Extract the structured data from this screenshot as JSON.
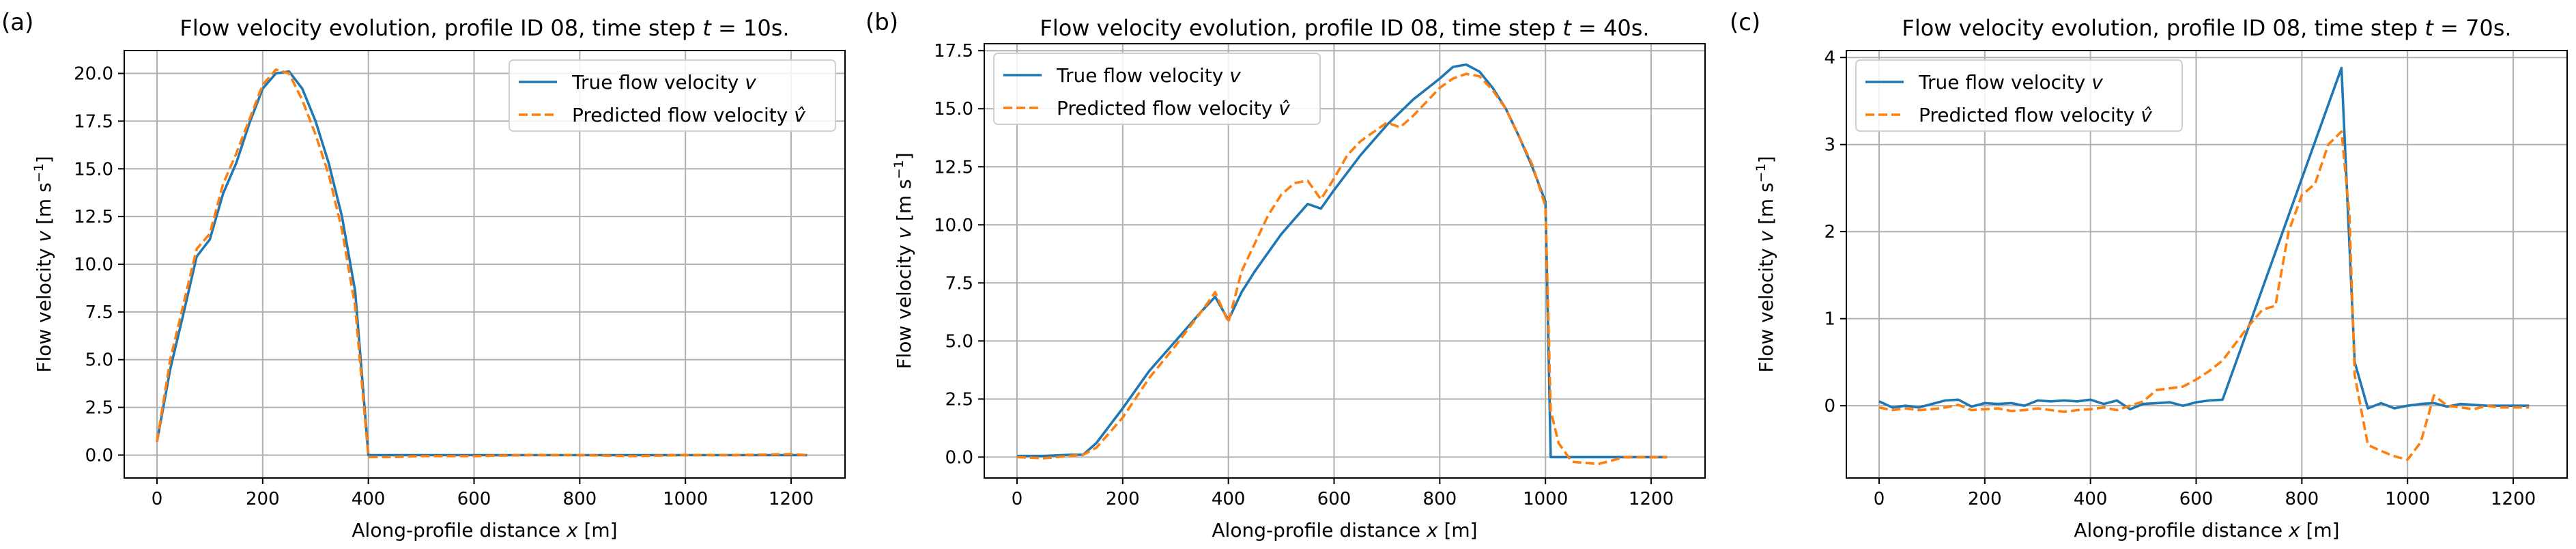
{
  "figure": {
    "colors": {
      "true_series": "#1f77b4",
      "pred_series": "#ff7f0e",
      "grid": "#b0b0b0",
      "axes": "#000000"
    }
  },
  "chart_data": [
    {
      "type": "line",
      "panel_label": "(a)",
      "title_prefix": "Flow velocity evolution, profile ID 08, time step ",
      "title_var": "t",
      "title_suffix": " = 10s.",
      "xlabel_prefix": "Along-profile distance ",
      "xlabel_var": "x",
      "xlabel_suffix": " [m]",
      "ylabel_prefix": "Flow velocity ",
      "ylabel_var": "v",
      "ylabel_suffix": " [m s",
      "ylabel_exp": "−1",
      "ylabel_close": "]",
      "legend_position": "top-right",
      "grid": true,
      "xlim": [
        -62,
        1302
      ],
      "ylim": [
        -1.2,
        21.2
      ],
      "xticks": [
        0,
        200,
        400,
        600,
        800,
        1000,
        1200
      ],
      "xtick_labels": [
        "0",
        "200",
        "400",
        "600",
        "800",
        "1000",
        "1200"
      ],
      "yticks": [
        0.0,
        2.5,
        5.0,
        7.5,
        10.0,
        12.5,
        15.0,
        17.5,
        20.0
      ],
      "ytick_labels": [
        "0.0",
        "2.5",
        "5.0",
        "7.5",
        "10.0",
        "12.5",
        "15.0",
        "17.5",
        "20.0"
      ],
      "series": [
        {
          "name": "True flow velocity",
          "symbol": "v",
          "style": "solid",
          "x": [
            0,
            25,
            50,
            75,
            100,
            125,
            150,
            175,
            200,
            225,
            250,
            275,
            300,
            325,
            350,
            375,
            400,
            500,
            600,
            700,
            800,
            900,
            1000,
            1100,
            1200,
            1230
          ],
          "y": [
            0.7,
            4.5,
            7.4,
            10.4,
            11.3,
            13.7,
            15.3,
            17.4,
            19.2,
            20.0,
            20.1,
            19.2,
            17.5,
            15.3,
            12.5,
            8.6,
            0.0,
            0.0,
            0.0,
            0.0,
            0.0,
            0.0,
            0.0,
            0.0,
            0.0,
            0.0
          ]
        },
        {
          "name": "Predicted flow velocity",
          "symbol": "v̂",
          "style": "dashed",
          "x": [
            0,
            25,
            50,
            75,
            100,
            125,
            150,
            175,
            200,
            225,
            250,
            275,
            300,
            325,
            350,
            375,
            400,
            450,
            500,
            600,
            700,
            800,
            900,
            1000,
            1100,
            1200,
            1230
          ],
          "y": [
            0.7,
            5.0,
            7.9,
            10.8,
            11.6,
            14.2,
            15.8,
            17.6,
            19.4,
            20.2,
            20.0,
            18.6,
            16.8,
            14.7,
            11.8,
            7.8,
            -0.1,
            -0.1,
            -0.05,
            -0.05,
            0.0,
            0.0,
            -0.05,
            0.0,
            0.0,
            0.05,
            0.0
          ]
        }
      ]
    },
    {
      "type": "line",
      "panel_label": "(b)",
      "title_prefix": "Flow velocity evolution, profile ID 08, time step ",
      "title_var": "t",
      "title_suffix": " = 40s.",
      "xlabel_prefix": "Along-profile distance ",
      "xlabel_var": "x",
      "xlabel_suffix": " [m]",
      "ylabel_prefix": "Flow velocity ",
      "ylabel_var": "v",
      "ylabel_suffix": " [m s",
      "ylabel_exp": "−1",
      "ylabel_close": "]",
      "legend_position": "top-left",
      "grid": true,
      "xlim": [
        -62,
        1302
      ],
      "ylim": [
        -0.9,
        17.8
      ],
      "xticks": [
        0,
        200,
        400,
        600,
        800,
        1000,
        1200
      ],
      "xtick_labels": [
        "0",
        "200",
        "400",
        "600",
        "800",
        "1000",
        "1200"
      ],
      "yticks": [
        0.0,
        2.5,
        5.0,
        7.5,
        10.0,
        12.5,
        15.0,
        17.5
      ],
      "ytick_labels": [
        "0.0",
        "2.5",
        "5.0",
        "7.5",
        "10.0",
        "12.5",
        "15.0",
        "17.5"
      ],
      "series": [
        {
          "name": "True flow velocity",
          "symbol": "v",
          "style": "solid",
          "x": [
            0,
            50,
            100,
            125,
            150,
            200,
            250,
            300,
            350,
            375,
            400,
            425,
            450,
            500,
            550,
            575,
            600,
            650,
            700,
            750,
            800,
            825,
            850,
            875,
            900,
            925,
            950,
            975,
            1000,
            1010,
            1050,
            1100,
            1150,
            1200,
            1230
          ],
          "y": [
            0.05,
            0.05,
            0.1,
            0.1,
            0.6,
            2.1,
            3.7,
            5.0,
            6.3,
            6.9,
            5.9,
            7.1,
            8.0,
            9.6,
            10.9,
            10.7,
            11.5,
            13.0,
            14.3,
            15.4,
            16.3,
            16.8,
            16.9,
            16.6,
            15.9,
            15.0,
            13.8,
            12.5,
            11.0,
            0.0,
            0.0,
            0.0,
            0.0,
            0.0,
            0.0
          ]
        },
        {
          "name": "Predicted flow velocity",
          "symbol": "v̂",
          "style": "dashed",
          "x": [
            0,
            50,
            100,
            125,
            150,
            200,
            250,
            300,
            350,
            375,
            400,
            425,
            450,
            475,
            500,
            525,
            550,
            575,
            600,
            625,
            650,
            700,
            725,
            750,
            775,
            800,
            825,
            850,
            875,
            900,
            925,
            950,
            975,
            1000,
            1010,
            1025,
            1050,
            1100,
            1150,
            1200,
            1230
          ],
          "y": [
            0.0,
            -0.05,
            0.05,
            0.1,
            0.4,
            1.7,
            3.4,
            4.8,
            6.3,
            7.1,
            5.8,
            8.0,
            9.2,
            10.4,
            11.3,
            11.8,
            11.9,
            11.1,
            12.0,
            13.0,
            13.6,
            14.4,
            14.2,
            14.7,
            15.3,
            15.9,
            16.3,
            16.5,
            16.4,
            15.8,
            15.0,
            13.8,
            12.6,
            10.8,
            2.0,
            0.6,
            -0.2,
            -0.3,
            0.0,
            0.0,
            0.0
          ]
        }
      ]
    },
    {
      "type": "line",
      "panel_label": "(c)",
      "title_prefix": "Flow velocity evolution, profile ID 08, time step ",
      "title_var": "t",
      "title_suffix": " = 70s.",
      "xlabel_prefix": "Along-profile distance ",
      "xlabel_var": "x",
      "xlabel_suffix": " [m]",
      "ylabel_prefix": "Flow velocity ",
      "ylabel_var": "v",
      "ylabel_suffix": " [m s",
      "ylabel_exp": "−1",
      "ylabel_close": "]",
      "legend_position": "top-left",
      "grid": true,
      "xlim": [
        -62,
        1302
      ],
      "ylim": [
        -0.83,
        4.08
      ],
      "xticks": [
        0,
        200,
        400,
        600,
        800,
        1000,
        1200
      ],
      "xtick_labels": [
        "0",
        "200",
        "400",
        "600",
        "800",
        "1000",
        "1200"
      ],
      "yticks": [
        0,
        1,
        2,
        3,
        4
      ],
      "ytick_labels": [
        "0",
        "1",
        "2",
        "3",
        "4"
      ],
      "series": [
        {
          "name": "True flow velocity",
          "symbol": "v",
          "style": "solid",
          "x": [
            0,
            25,
            50,
            75,
            100,
            125,
            150,
            175,
            200,
            225,
            250,
            275,
            300,
            325,
            350,
            375,
            400,
            425,
            450,
            475,
            500,
            525,
            550,
            575,
            600,
            625,
            650,
            875,
            900,
            925,
            950,
            975,
            1000,
            1025,
            1050,
            1075,
            1100,
            1150,
            1200,
            1230
          ],
          "y": [
            0.05,
            -0.02,
            0.0,
            -0.02,
            0.02,
            0.06,
            0.07,
            -0.01,
            0.03,
            0.02,
            0.03,
            0.0,
            0.06,
            0.05,
            0.06,
            0.05,
            0.07,
            0.02,
            0.06,
            -0.04,
            0.02,
            0.03,
            0.04,
            0.0,
            0.04,
            0.06,
            0.07,
            3.88,
            0.5,
            -0.03,
            0.03,
            -0.03,
            0.0,
            0.02,
            0.03,
            -0.01,
            0.02,
            0.0,
            0.0,
            0.0
          ]
        },
        {
          "name": "Predicted flow velocity",
          "symbol": "v̂",
          "style": "dashed",
          "x": [
            0,
            25,
            50,
            75,
            100,
            125,
            150,
            175,
            200,
            225,
            250,
            275,
            300,
            325,
            350,
            375,
            400,
            425,
            450,
            475,
            500,
            525,
            550,
            575,
            600,
            625,
            650,
            675,
            700,
            725,
            750,
            775,
            800,
            825,
            850,
            875,
            890,
            900,
            925,
            950,
            975,
            1000,
            1025,
            1050,
            1075,
            1100,
            1125,
            1150,
            1175,
            1200,
            1230
          ],
          "y": [
            -0.02,
            -0.05,
            -0.03,
            -0.05,
            -0.04,
            -0.02,
            0.01,
            -0.05,
            -0.04,
            -0.03,
            -0.06,
            -0.05,
            -0.03,
            -0.05,
            -0.07,
            -0.05,
            -0.04,
            -0.02,
            -0.05,
            0.0,
            0.05,
            0.18,
            0.2,
            0.22,
            0.3,
            0.4,
            0.52,
            0.72,
            0.92,
            1.1,
            1.15,
            2.0,
            2.42,
            2.55,
            3.0,
            3.15,
            2.2,
            0.35,
            -0.45,
            -0.52,
            -0.58,
            -0.62,
            -0.42,
            0.12,
            0.0,
            -0.02,
            -0.04,
            0.0,
            -0.02,
            -0.02,
            -0.02
          ]
        }
      ]
    }
  ]
}
